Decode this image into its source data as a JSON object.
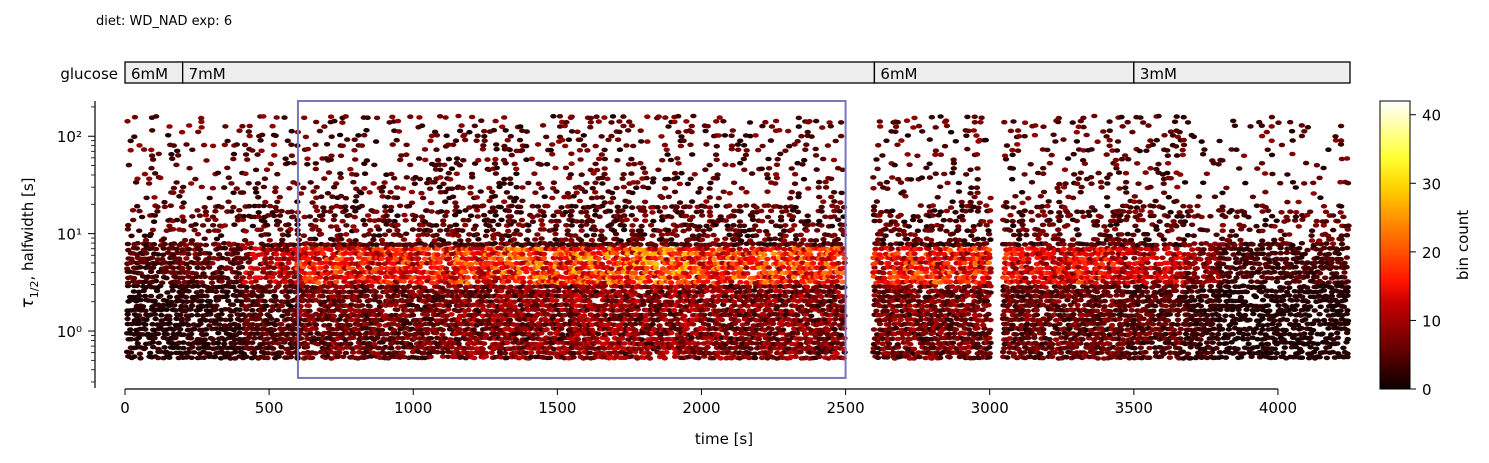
{
  "header": {
    "diet_label": "diet: WD_NAD  exp: 6"
  },
  "protocol": {
    "label": "glucose",
    "segments": [
      {
        "label": "6mM",
        "start": 0,
        "end": 200
      },
      {
        "label": "7mM",
        "start": 200,
        "end": 2600
      },
      {
        "label": "6mM",
        "start": 2600,
        "end": 3500
      },
      {
        "label": "3mM",
        "start": 3500,
        "end": 4250
      }
    ]
  },
  "chart_data": {
    "type": "heatmap",
    "subtype": "hexbin",
    "xlabel": "time [s]",
    "ylabel_main": "τ",
    "ylabel_sub": "1/2",
    "ylabel_rest": ", halfwidth [s]",
    "xlim": [
      0,
      4250
    ],
    "ylim": [
      0.26,
      230
    ],
    "yscale": "log",
    "x_ticks": [
      0,
      500,
      1000,
      1500,
      2000,
      2500,
      3000,
      3500,
      4000
    ],
    "x_tick_labels": [
      "0",
      "500",
      "1000",
      "1500",
      "2000",
      "2500",
      "3000",
      "3500",
      "4000"
    ],
    "y_ticks": [
      1,
      10,
      100
    ],
    "y_tick_labels": [
      "10⁰",
      "10¹",
      "10²"
    ],
    "highlight_box": {
      "x": [
        600,
        2500
      ],
      "y": [
        0.33,
        230
      ],
      "color": "#7777bb"
    },
    "colorbar": {
      "label": "bin count",
      "min": 0,
      "max": 42,
      "ticks": [
        0,
        10,
        20,
        30,
        40
      ],
      "tick_labels": [
        "0",
        "10",
        "20",
        "30",
        "40"
      ],
      "colormap": "hot"
    },
    "activity_segments": [
      {
        "t0": 10,
        "t1": 200,
        "intensity": 0.12
      },
      {
        "t0": 200,
        "t1": 420,
        "intensity": 0.15
      },
      {
        "t0": 420,
        "t1": 600,
        "intensity": 0.3
      },
      {
        "t0": 600,
        "t1": 1150,
        "intensity": 0.42
      },
      {
        "t0": 1150,
        "t1": 1550,
        "intensity": 0.5
      },
      {
        "t0": 1550,
        "t1": 2000,
        "intensity": 0.55
      },
      {
        "t0": 2000,
        "t1": 2500,
        "intensity": 0.48
      },
      {
        "t0": 2600,
        "t1": 2800,
        "intensity": 0.45
      },
      {
        "t0": 2800,
        "t1": 3000,
        "intensity": 0.45
      },
      {
        "t0": 3050,
        "t1": 3450,
        "intensity": 0.38
      },
      {
        "t0": 3450,
        "t1": 3680,
        "intensity": 0.33
      },
      {
        "t0": 3680,
        "t1": 3800,
        "intensity": 0.2
      },
      {
        "t0": 3800,
        "t1": 4250,
        "intensity": 0.1
      }
    ]
  }
}
